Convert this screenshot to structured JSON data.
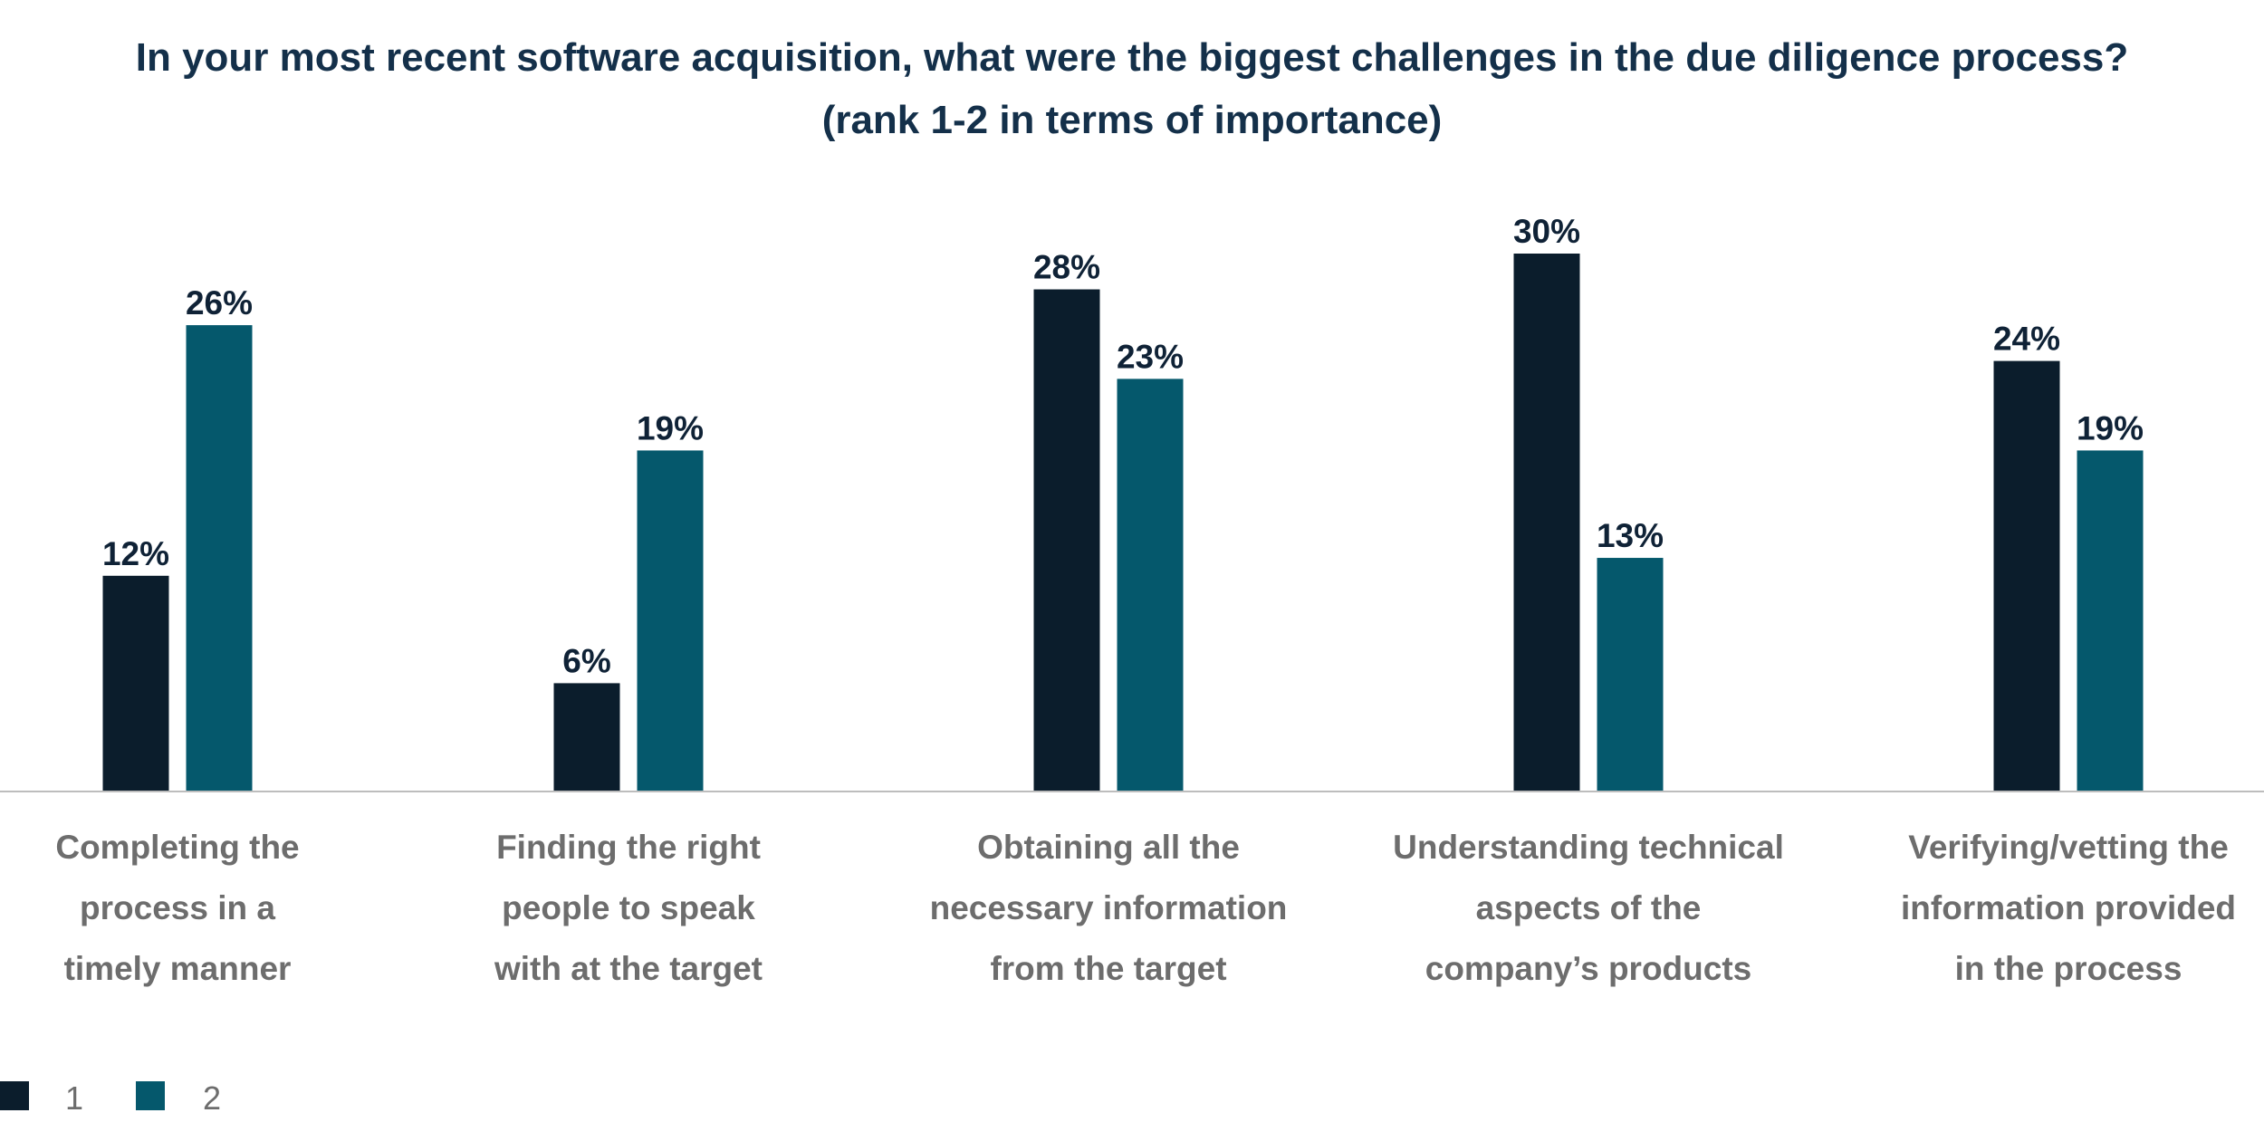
{
  "chart_data": {
    "type": "bar",
    "title_lines": [
      "In your most recent software acquisition, what were the biggest challenges in the due diligence process?",
      "(rank 1-2 in terms of importance)"
    ],
    "categories": [
      [
        "Completing the",
        "process in a",
        "timely manner"
      ],
      [
        "Finding the right",
        "people to speak",
        "with at the target"
      ],
      [
        "Obtaining all the",
        "necessary information",
        "from the target"
      ],
      [
        "Understanding technical",
        "aspects of the",
        "company’s products"
      ],
      [
        "Verifying/vetting the",
        "information provided",
        "in the process"
      ]
    ],
    "series": [
      {
        "name": "1",
        "color": "#0b1d2c",
        "values": [
          12,
          6,
          28,
          30,
          24
        ],
        "labels": [
          "12%",
          "6%",
          "28%",
          "30%",
          "24%"
        ]
      },
      {
        "name": "2",
        "color": "#05586c",
        "values": [
          26,
          19,
          23,
          13,
          19
        ],
        "labels": [
          "26%",
          "19%",
          "23%",
          "13%",
          "19%"
        ]
      }
    ],
    "xlabel": "",
    "ylabel": "",
    "ylim": [
      0,
      30
    ],
    "unit": "%",
    "grid": false,
    "legend_position": "bottom-left",
    "axis_color": "#bdbdbd"
  }
}
